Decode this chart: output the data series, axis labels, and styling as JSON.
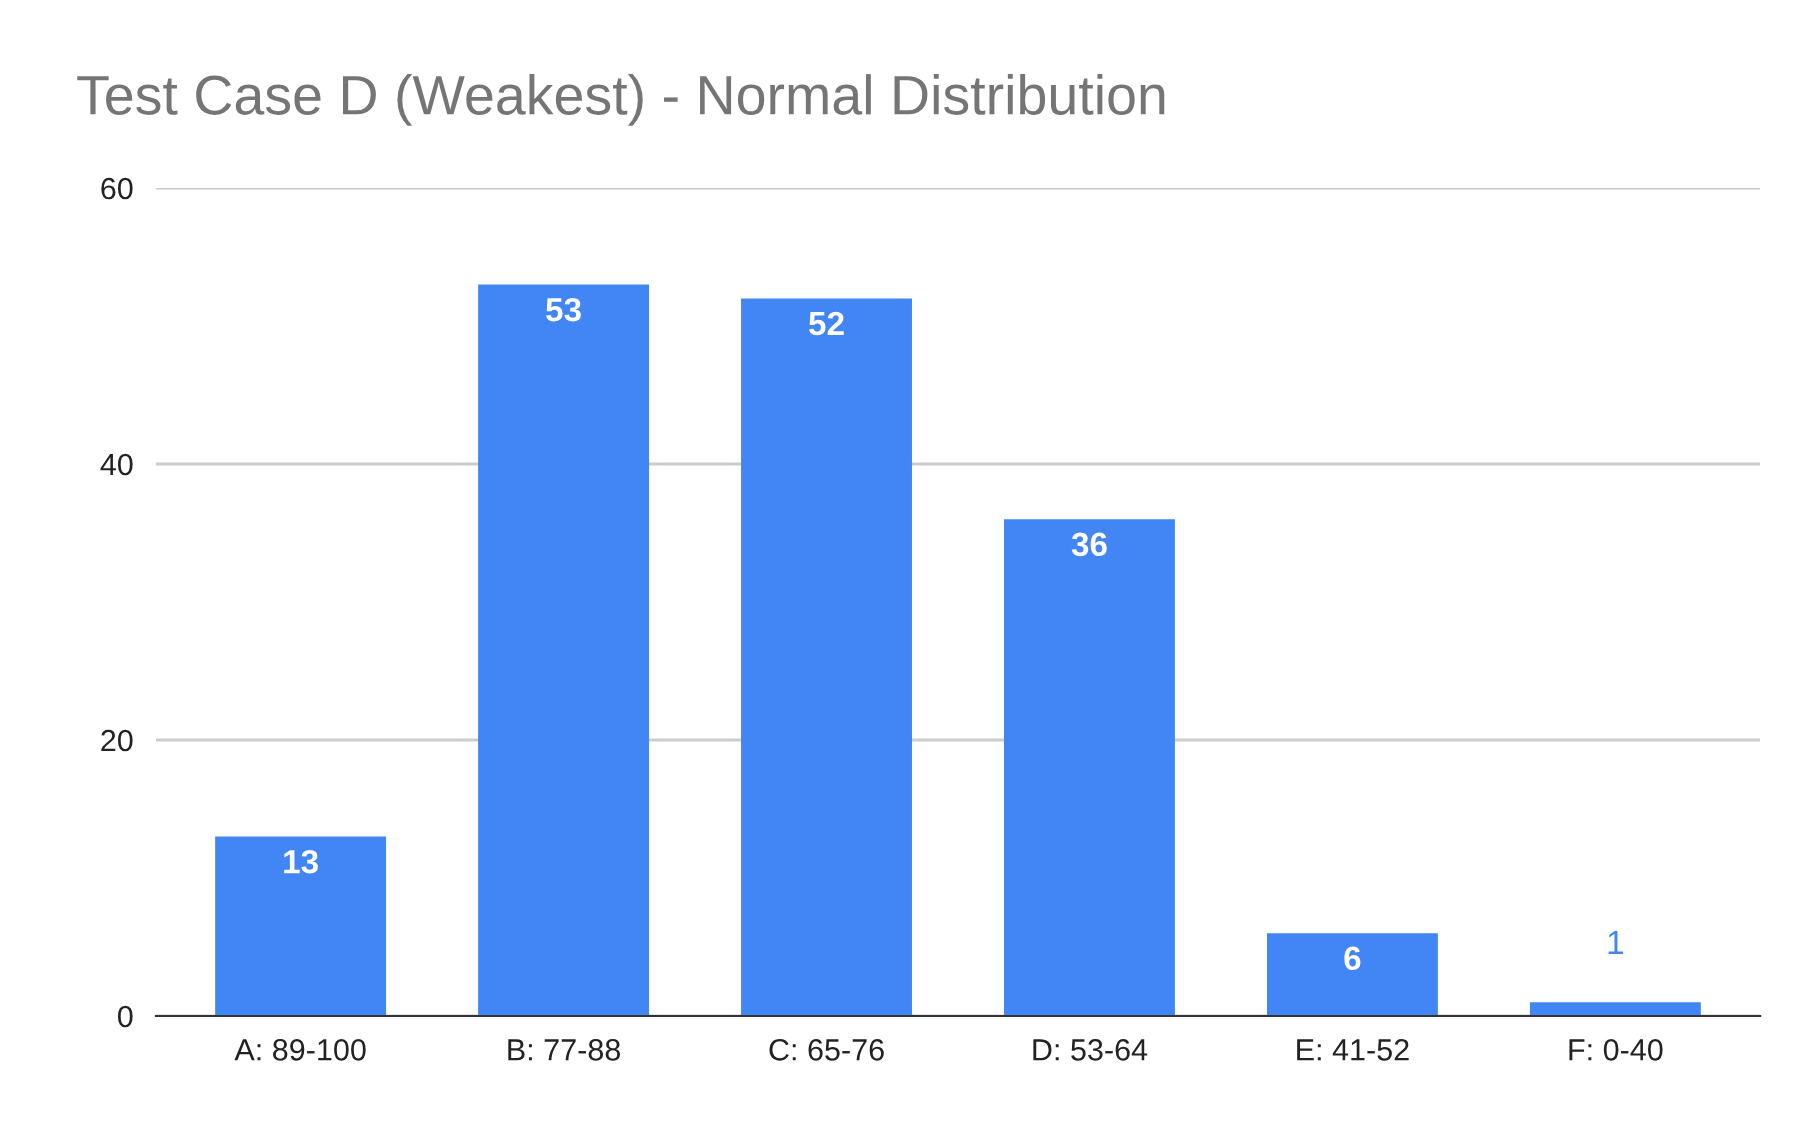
{
  "chart_data": {
    "type": "bar",
    "title": "Test Case D (Weakest) - Normal Distribution",
    "categories": [
      "A: 89-100",
      "B: 77-88",
      "C: 65-76",
      "D: 53-64",
      "E: 41-52",
      "F: 0-40"
    ],
    "values": [
      13,
      53,
      52,
      36,
      6,
      1
    ],
    "color": "#4285f4",
    "ylim": [
      0,
      60
    ],
    "yticks": [
      0,
      20,
      40,
      60
    ],
    "grid": "y",
    "data_labels": true
  }
}
